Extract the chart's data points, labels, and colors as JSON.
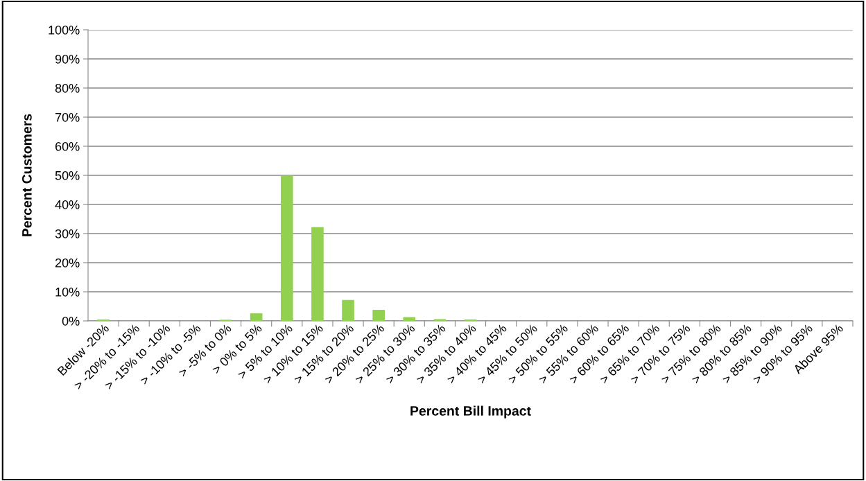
{
  "chart_data": {
    "type": "bar",
    "xlabel": "Percent Bill Impact",
    "ylabel": "Percent Customers",
    "categories": [
      "Below -20%",
      "> -20% to -15%",
      "> -15% to -10%",
      "> -10% to -5%",
      "> -5% to 0%",
      "> 0% to 5%",
      "> 5% to 10%",
      "> 10% to 15%",
      "> 15% to 20%",
      "> 20% to 25%",
      "> 25% to 30%",
      "> 30% to 35%",
      "> 35% to 40%",
      "> 40% to 45%",
      "> 45% to 50%",
      "> 50% to 55%",
      "> 55% to 60%",
      "> 60% to 65%",
      "> 65% to 70%",
      "> 70% to 75%",
      "> 75% to 80%",
      "> 80% to 85%",
      "> 85% to 90%",
      "> 90% to 95%",
      "Above 95%"
    ],
    "values": [
      0.5,
      0,
      0,
      0,
      0.4,
      2.6,
      50,
      32.2,
      7.2,
      3.8,
      1.3,
      0.6,
      0.5,
      0,
      0,
      0,
      0,
      0,
      0,
      0,
      0,
      0,
      0,
      0,
      0
    ],
    "color": "#92d050",
    "ylim": [
      0,
      100
    ],
    "yticks": [
      {
        "value": 0,
        "label": "0%"
      },
      {
        "value": 10,
        "label": "10%"
      },
      {
        "value": 20,
        "label": "20%"
      },
      {
        "value": 30,
        "label": "30%"
      },
      {
        "value": 40,
        "label": "40%"
      },
      {
        "value": 50,
        "label": "50%"
      },
      {
        "value": 60,
        "label": "60%"
      },
      {
        "value": 70,
        "label": "70%"
      },
      {
        "value": 80,
        "label": "80%"
      },
      {
        "value": 90,
        "label": "90%"
      },
      {
        "value": 100,
        "label": "100%"
      }
    ],
    "grid": "y",
    "legend": false
  }
}
